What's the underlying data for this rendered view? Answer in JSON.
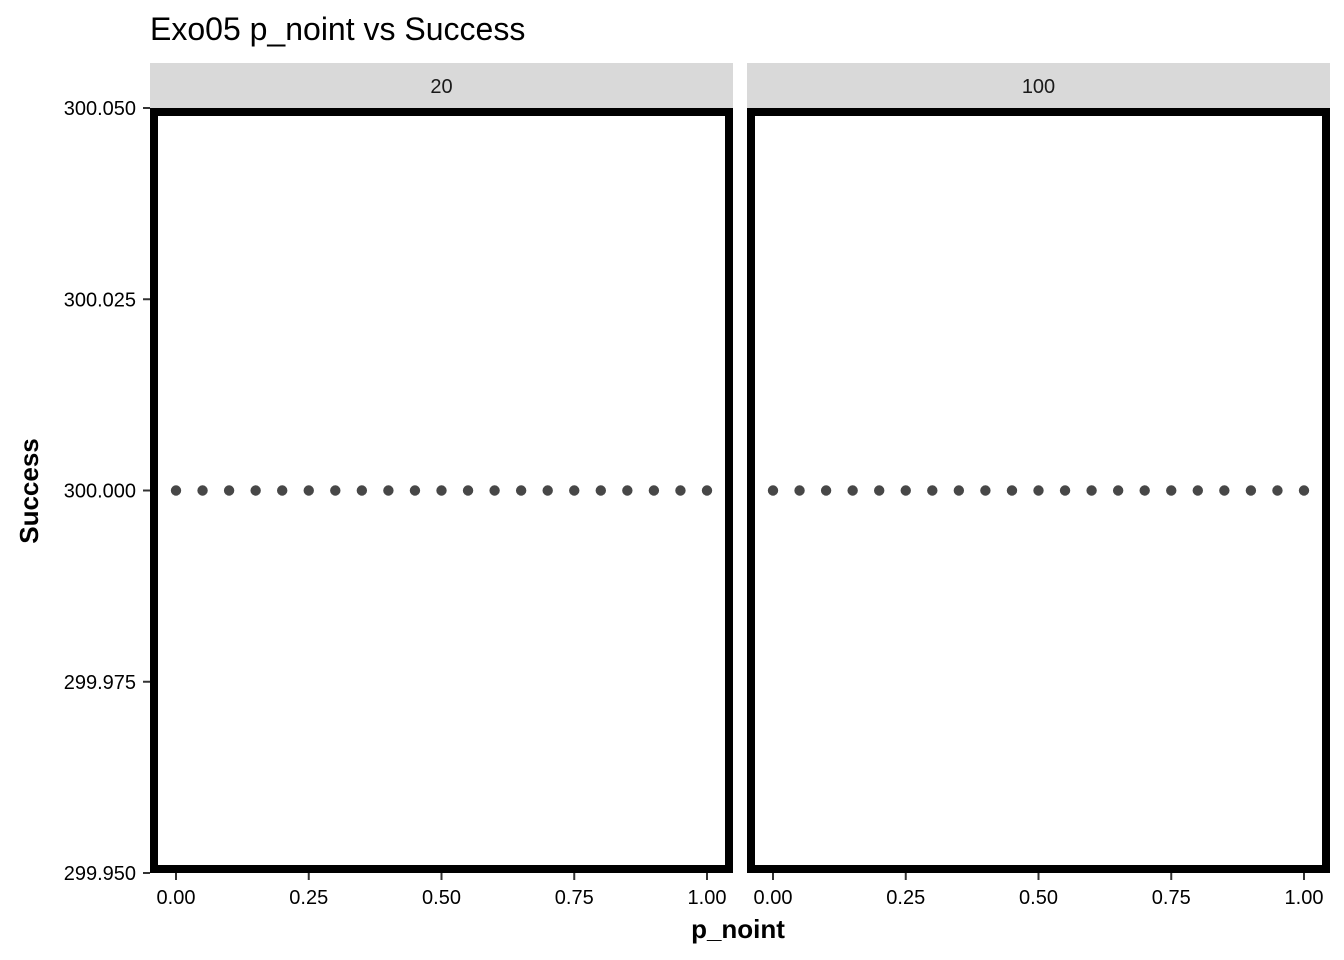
{
  "chart_data": {
    "type": "scatter",
    "title": "Exo05 p_noint vs Success",
    "xlabel": "p_noint",
    "ylabel": "Success",
    "xlim": [
      0,
      1
    ],
    "ylim": [
      299.95,
      300.05
    ],
    "x_ticks": [
      0,
      0.25,
      0.5,
      0.75,
      1
    ],
    "x_tick_labels": [
      "0.00",
      "0.25",
      "0.50",
      "0.75",
      "1.00"
    ],
    "y_ticks": [
      299.95,
      299.975,
      300,
      300.025,
      300.05
    ],
    "y_tick_labels": [
      "299.950",
      "299.975",
      "300.000",
      "300.025",
      "300.050"
    ],
    "grid": false,
    "point_color": "#333333",
    "panel_border_color": "#000000",
    "strip_color": "#d9d9d9",
    "panels": [
      {
        "strip_label": "20",
        "x": [
          0,
          0.05,
          0.1,
          0.15,
          0.2,
          0.25,
          0.3,
          0.35,
          0.4,
          0.45,
          0.5,
          0.55,
          0.6,
          0.65,
          0.7,
          0.75,
          0.8,
          0.85,
          0.9,
          0.95,
          1
        ],
        "y": [
          300,
          300,
          300,
          300,
          300,
          300,
          300,
          300,
          300,
          300,
          300,
          300,
          300,
          300,
          300,
          300,
          300,
          300,
          300,
          300,
          300
        ]
      },
      {
        "strip_label": "100",
        "x": [
          0,
          0.05,
          0.1,
          0.15,
          0.2,
          0.25,
          0.3,
          0.35,
          0.4,
          0.45,
          0.5,
          0.55,
          0.6,
          0.65,
          0.7,
          0.75,
          0.8,
          0.85,
          0.9,
          0.95,
          1
        ],
        "y": [
          300,
          300,
          300,
          300,
          300,
          300,
          300,
          300,
          300,
          300,
          300,
          300,
          300,
          300,
          300,
          300,
          300,
          300,
          300,
          300,
          300
        ]
      }
    ]
  }
}
